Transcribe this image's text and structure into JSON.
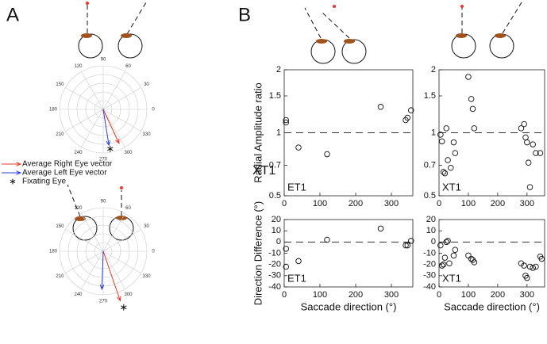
{
  "figure": {
    "panels": [
      "A",
      "B"
    ],
    "annotation": "XT1"
  },
  "chart_data": [
    {
      "type": "polar",
      "rlim": [
        0,
        1
      ],
      "thetaticks": [
        0,
        30,
        60,
        90,
        120,
        150,
        180,
        210,
        240,
        270,
        300,
        330
      ],
      "series": [
        {
          "name": "Average Right Eye vector",
          "color": "#e8392b",
          "marker": "arrow",
          "theta": [
            295
          ],
          "r": [
            0.86
          ]
        },
        {
          "name": "Average Left Eye vector",
          "color": "#2b3fe0",
          "marker": "arrow",
          "theta": [
            279
          ],
          "r": [
            0.83
          ]
        },
        {
          "name": "Fixating Eye",
          "color": "#111111",
          "marker": "star",
          "theta": [
            280
          ],
          "r": [
            0.92
          ]
        }
      ]
    },
    {
      "type": "polar",
      "rlim": [
        0,
        1
      ],
      "thetaticks": [
        0,
        30,
        60,
        90,
        120,
        150,
        180,
        210,
        240,
        270,
        300,
        330
      ],
      "series": [
        {
          "color": "#e8392b",
          "marker": "arrow",
          "theta": [
            289
          ],
          "r": [
            1.2
          ]
        },
        {
          "color": "#2b3fe0",
          "marker": "arrow",
          "theta": [
            268
          ],
          "r": [
            0.87
          ]
        },
        {
          "color": "#111111",
          "marker": "star",
          "theta": [
            290
          ],
          "r": [
            1.37
          ]
        }
      ]
    },
    {
      "type": "scatter",
      "ylabel": "Radial Amplitude ratio",
      "annotation": "ET1",
      "ylog": true,
      "hline": 1,
      "xlim": [
        0,
        360
      ],
      "xticks": [
        0,
        100,
        200,
        300
      ],
      "ylim": [
        0.5,
        2
      ],
      "yticks": [
        0.5,
        0.7,
        1,
        1.5,
        2
      ],
      "x": [
        5,
        5,
        40,
        120,
        270,
        340,
        345,
        355
      ],
      "y": [
        1.12,
        1.15,
        0.85,
        0.79,
        1.33,
        1.15,
        1.18,
        1.28
      ]
    },
    {
      "type": "scatter",
      "annotation": "XT1",
      "ylog": true,
      "hline": 1,
      "xlim": [
        0,
        360
      ],
      "xticks": [
        0,
        100,
        200,
        300
      ],
      "ylim": [
        0.5,
        2
      ],
      "yticks": [
        0.5,
        0.7,
        1,
        1.5,
        2
      ],
      "x": [
        5,
        10,
        15,
        20,
        25,
        30,
        40,
        50,
        55,
        100,
        110,
        115,
        120,
        280,
        290,
        295,
        300,
        305,
        310,
        320,
        330,
        345
      ],
      "y": [
        0.98,
        0.91,
        0.65,
        0.64,
        1.05,
        0.74,
        0.68,
        0.9,
        0.8,
        1.85,
        1.45,
        1.3,
        1.05,
        1.05,
        1.1,
        0.95,
        0.9,
        0.72,
        0.55,
        0.88,
        0.8,
        0.8
      ]
    },
    {
      "type": "scatter",
      "ylabel": "Direction Difference (°)",
      "xlabel": "Saccade direction (°)",
      "annotation": "ET1",
      "hline": 0,
      "xlim": [
        0,
        360
      ],
      "xticks": [
        0,
        100,
        200,
        300
      ],
      "ylim": [
        -40,
        20
      ],
      "yticks": [
        -40,
        -30,
        -20,
        -10,
        0,
        10,
        20
      ],
      "x": [
        5,
        5,
        40,
        120,
        270,
        340,
        345,
        355
      ],
      "y": [
        -6,
        -22,
        -17,
        2,
        12,
        -3,
        -3,
        1
      ]
    },
    {
      "type": "scatter",
      "xlabel": "Saccade direction (°)",
      "annotation": "XT1",
      "hline": 0,
      "xlim": [
        0,
        360
      ],
      "xticks": [
        0,
        100,
        200,
        300
      ],
      "ylim": [
        -40,
        20
      ],
      "yticks": [
        -40,
        -30,
        -20,
        -10,
        0,
        10,
        20
      ],
      "x": [
        5,
        10,
        15,
        20,
        25,
        30,
        35,
        50,
        55,
        100,
        110,
        115,
        120,
        280,
        290,
        295,
        300,
        310,
        320,
        330,
        345,
        350
      ],
      "y": [
        -3,
        -21,
        -20,
        -14,
        0,
        1,
        -19,
        -12,
        -7,
        -12,
        -15,
        -16,
        -18,
        -19,
        -21,
        -30,
        -32,
        -22,
        -23,
        -22,
        -13,
        -15
      ]
    }
  ]
}
